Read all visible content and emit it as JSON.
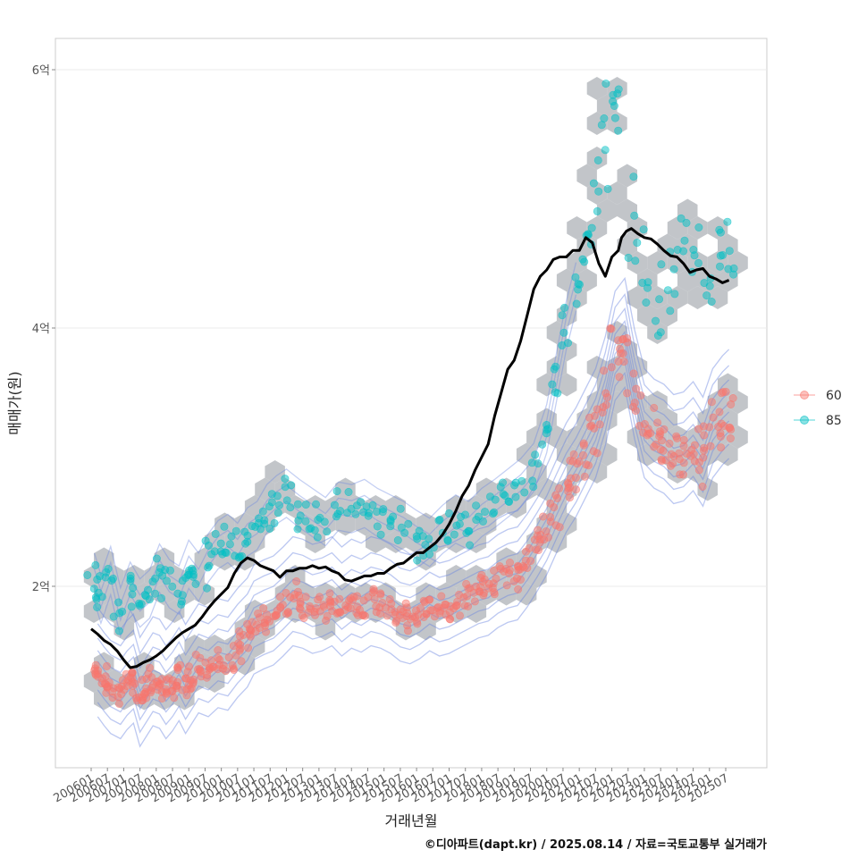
{
  "caption": "©디아파트(dapt.kr) / 2025.08.14 / 자료=국토교통부 실거래가",
  "colors": {
    "s60": "#f8766d",
    "s85": "#00bfc4",
    "hex": "#b7bbc0",
    "contour": "#6b86e0",
    "line": "#000000",
    "grid": "#ebebeb",
    "panel_border": "#cccccc"
  },
  "chart_data": {
    "type": "scatter",
    "xlabel": "거래년월",
    "ylabel": "매매가(원)",
    "y_ticks": [
      {
        "value": 200000000,
        "label": "2억"
      },
      {
        "value": 400000000,
        "label": "4억"
      },
      {
        "value": 600000000,
        "label": "6억"
      }
    ],
    "ylim": [
      75000000,
      630000000
    ],
    "x_ticks": [
      "200601",
      "200607",
      "200701",
      "200707",
      "200801",
      "200807",
      "200901",
      "200907",
      "201001",
      "201007",
      "201101",
      "201107",
      "201201",
      "201207",
      "201301",
      "201307",
      "201401",
      "201407",
      "201501",
      "201507",
      "201601",
      "201607",
      "201701",
      "201707",
      "201801",
      "201807",
      "201901",
      "201907",
      "202001",
      "202007",
      "202101",
      "202107",
      "202201",
      "202207",
      "202301",
      "202307",
      "202401",
      "202407",
      "202501",
      "202507"
    ],
    "xlim": [
      2004.8,
      2026.5
    ],
    "legend": {
      "title": "",
      "position": "right",
      "entries": [
        {
          "name": "60",
          "color": "#f8766d"
        },
        {
          "name": "85",
          "color": "#00bfc4"
        }
      ]
    },
    "grid": true,
    "layers": [
      "hexbin",
      "density-contours",
      "points",
      "median-line"
    ],
    "series": [
      {
        "name": "60",
        "description_points": [
          [
            2006.2,
            135
          ],
          [
            2006.4,
            128
          ],
          [
            2006.6,
            122
          ],
          [
            2006.9,
            118
          ],
          [
            2007.1,
            125
          ],
          [
            2007.3,
            130
          ],
          [
            2007.5,
            112
          ],
          [
            2007.7,
            120
          ],
          [
            2007.9,
            128
          ],
          [
            2008.1,
            126
          ],
          [
            2008.3,
            118
          ],
          [
            2008.5,
            124
          ],
          [
            2008.7,
            132
          ],
          [
            2008.9,
            122
          ],
          [
            2009.1,
            130
          ],
          [
            2009.3,
            138
          ],
          [
            2009.6,
            135
          ],
          [
            2009.9,
            142
          ],
          [
            2010.2,
            140
          ],
          [
            2010.5,
            150
          ],
          [
            2010.8,
            158
          ],
          [
            2011.0,
            168
          ],
          [
            2011.3,
            172
          ],
          [
            2011.6,
            175
          ],
          [
            2011.9,
            182
          ],
          [
            2012.2,
            190
          ],
          [
            2012.5,
            188
          ],
          [
            2012.8,
            184
          ],
          [
            2013.1,
            186
          ],
          [
            2013.4,
            190
          ],
          [
            2013.7,
            182
          ],
          [
            2014.0,
            188
          ],
          [
            2014.3,
            185
          ],
          [
            2014.6,
            190
          ],
          [
            2014.9,
            188
          ],
          [
            2015.2,
            184
          ],
          [
            2015.5,
            178
          ],
          [
            2015.8,
            176
          ],
          [
            2016.1,
            180
          ],
          [
            2016.4,
            186
          ],
          [
            2016.7,
            182
          ],
          [
            2017.0,
            184
          ],
          [
            2017.3,
            188
          ],
          [
            2017.6,
            192
          ],
          [
            2017.9,
            196
          ],
          [
            2018.2,
            198
          ],
          [
            2018.5,
            204
          ],
          [
            2018.8,
            208
          ],
          [
            2019.1,
            210
          ],
          [
            2019.4,
            220
          ],
          [
            2019.7,
            232
          ],
          [
            2020.0,
            245
          ],
          [
            2020.3,
            262
          ],
          [
            2020.6,
            278
          ],
          [
            2020.9,
            290
          ],
          [
            2021.2,
            305
          ],
          [
            2021.5,
            320
          ],
          [
            2021.8,
            345
          ],
          [
            2022.1,
            380
          ],
          [
            2022.4,
            390
          ],
          [
            2022.7,
            350
          ],
          [
            2023.0,
            320
          ],
          [
            2023.3,
            312
          ],
          [
            2023.6,
            308
          ],
          [
            2023.9,
            300
          ],
          [
            2024.2,
            302
          ],
          [
            2024.5,
            310
          ],
          [
            2024.8,
            298
          ],
          [
            2025.1,
            320
          ],
          [
            2025.4,
            330
          ],
          [
            2025.6,
            335
          ]
        ]
      },
      {
        "name": "85",
        "description_points": [
          [
            2006.1,
            205
          ],
          [
            2006.3,
            188
          ],
          [
            2006.6,
            210
          ],
          [
            2006.9,
            178
          ],
          [
            2007.2,
            198
          ],
          [
            2007.5,
            185
          ],
          [
            2007.8,
            192
          ],
          [
            2008.1,
            212
          ],
          [
            2008.4,
            200
          ],
          [
            2008.7,
            195
          ],
          [
            2009.0,
            215
          ],
          [
            2009.3,
            205
          ],
          [
            2009.6,
            220
          ],
          [
            2009.9,
            230
          ],
          [
            2010.2,
            235
          ],
          [
            2010.5,
            228
          ],
          [
            2010.8,
            240
          ],
          [
            2011.1,
            245
          ],
          [
            2011.4,
            258
          ],
          [
            2011.7,
            265
          ],
          [
            2012.0,
            270
          ],
          [
            2012.4,
            262
          ],
          [
            2012.8,
            255
          ],
          [
            2013.2,
            248
          ],
          [
            2013.6,
            260
          ],
          [
            2014.0,
            258
          ],
          [
            2014.4,
            262
          ],
          [
            2014.8,
            255
          ],
          [
            2015.2,
            250
          ],
          [
            2015.6,
            245
          ],
          [
            2016.0,
            238
          ],
          [
            2016.4,
            232
          ],
          [
            2016.8,
            242
          ],
          [
            2017.2,
            250
          ],
          [
            2017.6,
            245
          ],
          [
            2018.0,
            255
          ],
          [
            2018.4,
            262
          ],
          [
            2018.8,
            270
          ],
          [
            2019.2,
            278
          ],
          [
            2019.6,
            290
          ],
          [
            2020.0,
            320
          ],
          [
            2020.3,
            360
          ],
          [
            2020.6,
            400
          ],
          [
            2020.9,
            430
          ],
          [
            2021.2,
            460
          ],
          [
            2021.5,
            500
          ],
          [
            2021.8,
            530
          ],
          [
            2022.0,
            590
          ],
          [
            2022.2,
            580
          ],
          [
            2022.6,
            480
          ],
          [
            2023.0,
            440
          ],
          [
            2023.4,
            420
          ],
          [
            2023.8,
            430
          ],
          [
            2024.2,
            470
          ],
          [
            2024.6,
            460
          ],
          [
            2025.0,
            440
          ],
          [
            2025.4,
            450
          ],
          [
            2025.6,
            460
          ]
        ]
      }
    ],
    "median_line": {
      "x": [
        2006.0,
        2006.2,
        2006.4,
        2006.6,
        2006.8,
        2007.0,
        2007.2,
        2007.4,
        2007.6,
        2007.8,
        2008.0,
        2008.2,
        2008.4,
        2008.6,
        2008.8,
        2009.0,
        2009.2,
        2009.4,
        2009.6,
        2009.8,
        2010.0,
        2010.2,
        2010.4,
        2010.6,
        2010.8,
        2011.0,
        2011.2,
        2011.4,
        2011.6,
        2011.8,
        2012.0,
        2012.2,
        2012.4,
        2012.6,
        2012.8,
        2013.0,
        2013.2,
        2013.4,
        2013.6,
        2013.8,
        2014.0,
        2014.2,
        2014.4,
        2014.6,
        2014.8,
        2015.0,
        2015.2,
        2015.4,
        2015.6,
        2015.8,
        2016.0,
        2016.2,
        2016.4,
        2016.6,
        2016.8,
        2017.0,
        2017.2,
        2017.4,
        2017.6,
        2017.8,
        2018.0,
        2018.2,
        2018.4,
        2018.6,
        2018.8,
        2019.0,
        2019.2,
        2019.4,
        2019.6,
        2019.8,
        2020.0,
        2020.2,
        2020.4,
        2020.6,
        2020.8,
        2021.0,
        2021.2,
        2021.4,
        2021.6,
        2021.8,
        2022.0,
        2022.2,
        2022.3,
        2022.45,
        2022.6,
        2022.8,
        2023.0,
        2023.2,
        2023.4,
        2023.6,
        2023.8,
        2024.0,
        2024.2,
        2024.4,
        2024.6,
        2024.8,
        2025.0,
        2025.2,
        2025.4,
        2025.6
      ],
      "y": [
        167,
        163,
        158,
        155,
        150,
        143,
        137,
        138,
        141,
        143,
        146,
        150,
        155,
        160,
        164,
        167,
        170,
        176,
        183,
        189,
        194,
        199,
        210,
        218,
        222,
        220,
        216,
        214,
        212,
        207,
        212,
        212,
        214,
        214,
        216,
        214,
        215,
        212,
        210,
        205,
        204,
        206,
        208,
        208,
        210,
        210,
        214,
        217,
        218,
        222,
        226,
        226,
        230,
        234,
        240,
        248,
        258,
        270,
        278,
        290,
        300,
        310,
        332,
        350,
        368,
        375,
        390,
        410,
        430,
        440,
        445,
        453,
        455,
        455,
        460,
        460,
        470,
        466,
        450,
        440,
        455,
        460,
        470,
        475,
        477,
        473,
        470,
        469,
        465,
        460,
        456,
        455,
        450,
        443,
        445,
        446,
        440,
        438,
        435,
        437
      ]
    },
    "median_line_units": "x: decimal year; y: price in 백만원 (millions of won)"
  }
}
